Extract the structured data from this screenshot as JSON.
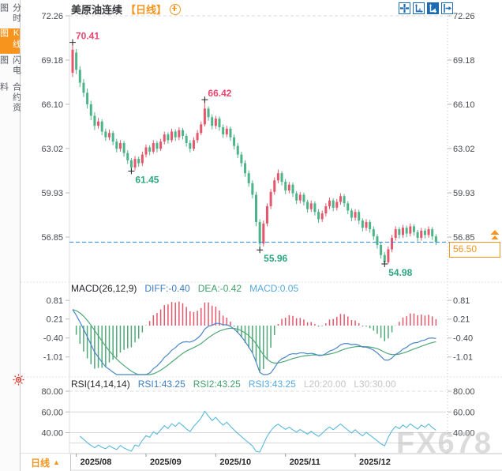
{
  "sidebar": {
    "items": [
      {
        "label": "分时图",
        "active": false
      },
      {
        "label": "K线图",
        "active": true
      },
      {
        "label": "闪电图",
        "active": false
      },
      {
        "label": "合约资料",
        "active": false
      }
    ]
  },
  "header": {
    "symbol": "美原油连续",
    "period_tag": "【日线】",
    "toolbar_icons": [
      "crosshair",
      "axis-scale",
      "axis-scale-auto",
      "shift-right"
    ]
  },
  "price_tag": {
    "value": "56.50"
  },
  "latest_marker": "scroll-to-latest",
  "period_button": {
    "label": "日线",
    "arrow": "▲"
  },
  "watermark": "FX678",
  "macd_header": {
    "title": "MACD(26,12,9)",
    "diff_label": "DIFF:-0.40",
    "dea_label": "DEA:-0.42",
    "macd_label": "MACD:0.05"
  },
  "rsi_header": {
    "title": "RSI(14,14,14)",
    "rsi1_label": "RSI1:43.25",
    "rsi2_label": "RSI2:43.25",
    "rsi3_label": "RSI3:43.25",
    "l20_label": "L20:20.00",
    "l30_label": "L30:30.00"
  },
  "colors": {
    "up": "#e4566b",
    "down": "#4db388",
    "diff_line": "#4a86c8",
    "dea_line": "#4fa878",
    "rsi_line": "#58b8dc",
    "accent_orange": "#f7941d",
    "toolbar_blue": "#1b6cb5",
    "price_line_blue": "#2b87e3",
    "annotation_high": "#e8486e",
    "annotation_low": "#2ba87d",
    "axis_text": "#45494e",
    "x_label_text": "#26282b"
  },
  "chart_data": [
    {
      "type": "candlestick",
      "title": "美原油连续 日线",
      "y_ticks": [
        72.26,
        69.18,
        66.1,
        63.02,
        59.93,
        56.85
      ],
      "x_ticks": [
        "2025/08",
        "2025/09",
        "2025/10",
        "2025/11",
        "2025/12"
      ],
      "month_tick_indices": [
        1,
        20,
        39,
        58,
        77
      ],
      "last_price": 56.5,
      "annotations": [
        {
          "index": 0,
          "price": 70.41,
          "text": "70.41",
          "kind": "high"
        },
        {
          "index": 16,
          "price": 61.45,
          "text": "61.45",
          "kind": "low"
        },
        {
          "index": 36,
          "price": 66.42,
          "text": "66.42",
          "kind": "high"
        },
        {
          "index": 51,
          "price": 55.96,
          "text": "55.96",
          "kind": "low"
        },
        {
          "index": 85,
          "price": 54.98,
          "text": "54.98",
          "kind": "low"
        }
      ],
      "candles": [
        [
          68.3,
          70.41,
          68.0,
          69.9
        ],
        [
          69.7,
          69.95,
          68.2,
          68.5
        ],
        [
          68.5,
          68.75,
          67.3,
          67.6
        ],
        [
          67.6,
          67.85,
          66.6,
          66.9
        ],
        [
          66.9,
          67.2,
          65.8,
          66.1
        ],
        [
          66.1,
          66.35,
          65.0,
          65.3
        ],
        [
          65.3,
          65.55,
          64.3,
          64.6
        ],
        [
          64.6,
          65.15,
          64.4,
          64.9
        ],
        [
          64.9,
          65.05,
          63.95,
          64.2
        ],
        [
          64.2,
          64.4,
          63.55,
          63.8
        ],
        [
          63.8,
          64.35,
          63.6,
          64.1
        ],
        [
          64.1,
          64.25,
          63.25,
          63.5
        ],
        [
          63.5,
          63.7,
          62.75,
          63.0
        ],
        [
          63.0,
          63.6,
          62.8,
          63.4
        ],
        [
          63.4,
          63.55,
          62.45,
          62.7
        ],
        [
          62.7,
          62.9,
          61.95,
          62.2
        ],
        [
          62.2,
          62.35,
          61.45,
          61.7
        ],
        [
          61.7,
          62.5,
          61.5,
          62.3
        ],
        [
          62.3,
          62.45,
          61.75,
          62.0
        ],
        [
          62.0,
          62.8,
          61.8,
          62.6
        ],
        [
          62.6,
          63.3,
          62.4,
          63.1
        ],
        [
          63.1,
          63.25,
          62.55,
          62.8
        ],
        [
          62.8,
          63.6,
          62.65,
          63.4
        ],
        [
          63.4,
          63.55,
          62.75,
          63.0
        ],
        [
          63.0,
          63.7,
          62.85,
          63.5
        ],
        [
          63.5,
          64.2,
          63.3,
          64.0
        ],
        [
          64.0,
          64.15,
          63.35,
          63.6
        ],
        [
          63.6,
          64.4,
          63.45,
          64.2
        ],
        [
          64.2,
          64.35,
          63.55,
          63.8
        ],
        [
          63.8,
          64.5,
          63.6,
          64.3
        ],
        [
          64.3,
          64.45,
          63.65,
          63.9
        ],
        [
          63.9,
          64.05,
          63.15,
          63.4
        ],
        [
          63.4,
          63.6,
          62.75,
          63.0
        ],
        [
          63.0,
          63.8,
          62.85,
          63.6
        ],
        [
          63.6,
          64.3,
          63.4,
          64.1
        ],
        [
          64.1,
          64.9,
          63.95,
          64.7
        ],
        [
          64.7,
          66.42,
          64.55,
          65.8
        ],
        [
          65.8,
          65.95,
          64.95,
          65.2
        ],
        [
          65.2,
          65.4,
          64.35,
          64.6
        ],
        [
          64.6,
          65.3,
          64.4,
          65.1
        ],
        [
          65.1,
          65.25,
          64.25,
          64.5
        ],
        [
          64.5,
          64.7,
          63.75,
          64.0
        ],
        [
          64.0,
          64.6,
          63.8,
          64.4
        ],
        [
          64.4,
          64.55,
          63.55,
          63.8
        ],
        [
          63.8,
          64.0,
          62.95,
          63.2
        ],
        [
          63.2,
          63.4,
          62.35,
          62.6
        ],
        [
          62.6,
          62.8,
          61.75,
          62.0
        ],
        [
          62.0,
          62.2,
          61.05,
          61.3
        ],
        [
          61.3,
          61.5,
          60.35,
          60.6
        ],
        [
          60.6,
          60.8,
          59.55,
          59.8
        ],
        [
          59.8,
          60.0,
          57.6,
          57.9
        ],
        [
          57.9,
          58.1,
          55.96,
          56.4
        ],
        [
          56.4,
          58.0,
          56.2,
          57.8
        ],
        [
          57.8,
          59.2,
          57.6,
          59.0
        ],
        [
          59.0,
          60.2,
          58.8,
          60.0
        ],
        [
          60.0,
          61.0,
          59.8,
          60.8
        ],
        [
          60.8,
          61.55,
          60.6,
          61.3
        ],
        [
          61.3,
          61.45,
          60.45,
          60.7
        ],
        [
          60.7,
          60.9,
          59.85,
          60.1
        ],
        [
          60.1,
          60.7,
          59.9,
          60.5
        ],
        [
          60.5,
          60.65,
          59.65,
          59.9
        ],
        [
          59.9,
          60.05,
          59.15,
          59.4
        ],
        [
          59.4,
          60.0,
          59.2,
          59.8
        ],
        [
          59.8,
          59.95,
          59.05,
          59.3
        ],
        [
          59.3,
          59.45,
          58.55,
          58.8
        ],
        [
          58.8,
          59.4,
          58.6,
          59.2
        ],
        [
          59.2,
          59.35,
          58.35,
          58.6
        ],
        [
          58.6,
          58.8,
          57.85,
          58.1
        ],
        [
          58.1,
          58.7,
          57.9,
          58.5
        ],
        [
          58.5,
          59.2,
          58.3,
          59.0
        ],
        [
          59.0,
          59.6,
          58.8,
          59.4
        ],
        [
          59.4,
          59.55,
          58.65,
          58.9
        ],
        [
          58.9,
          59.5,
          58.7,
          59.3
        ],
        [
          59.3,
          59.9,
          59.1,
          59.7
        ],
        [
          59.7,
          59.85,
          58.95,
          59.2
        ],
        [
          59.2,
          59.35,
          58.45,
          58.7
        ],
        [
          58.7,
          58.85,
          57.95,
          58.2
        ],
        [
          58.2,
          58.8,
          58.0,
          58.6
        ],
        [
          58.6,
          58.75,
          57.75,
          58.0
        ],
        [
          58.0,
          58.15,
          57.25,
          57.5
        ],
        [
          57.5,
          58.1,
          57.3,
          57.9
        ],
        [
          57.9,
          58.05,
          57.15,
          57.4
        ],
        [
          57.4,
          57.6,
          56.65,
          56.9
        ],
        [
          56.9,
          57.05,
          56.05,
          56.3
        ],
        [
          56.3,
          56.5,
          55.35,
          55.6
        ],
        [
          55.6,
          55.8,
          54.98,
          55.1
        ],
        [
          55.1,
          56.2,
          54.99,
          56.0
        ],
        [
          56.0,
          57.0,
          55.8,
          56.8
        ],
        [
          56.8,
          57.6,
          56.6,
          57.4
        ],
        [
          57.4,
          57.55,
          56.75,
          57.0
        ],
        [
          57.0,
          57.7,
          56.8,
          57.5
        ],
        [
          57.5,
          57.65,
          56.85,
          57.1
        ],
        [
          57.1,
          57.8,
          56.9,
          57.6
        ],
        [
          57.6,
          57.75,
          56.95,
          57.2
        ],
        [
          57.2,
          57.35,
          56.55,
          56.8
        ],
        [
          56.8,
          57.5,
          56.6,
          57.3
        ],
        [
          57.3,
          57.45,
          56.75,
          57.0
        ],
        [
          57.0,
          57.6,
          56.8,
          57.4
        ],
        [
          57.4,
          57.55,
          56.65,
          56.9
        ],
        [
          56.9,
          57.05,
          56.3,
          56.5
        ]
      ]
    },
    {
      "type": "macd",
      "params": [
        26,
        12,
        9
      ],
      "y_ticks": [
        0.81,
        0.21,
        -0.4,
        -1.01
      ],
      "last_values": {
        "diff": -0.4,
        "dea": -0.42,
        "macd": 0.05
      }
    },
    {
      "type": "line",
      "name": "RSI",
      "params": [
        14,
        14,
        14
      ],
      "y_ticks": [
        80.0,
        60.0,
        40.0
      ],
      "levels": {
        "l20": 20.0,
        "l30": 30.0
      },
      "last_values": {
        "rsi1": 43.25,
        "rsi2": 43.25,
        "rsi3": 43.25
      }
    }
  ]
}
